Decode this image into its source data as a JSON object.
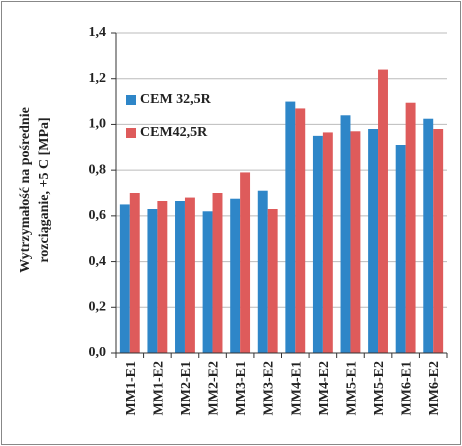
{
  "chart_data": {
    "type": "bar",
    "ylabel": [
      "Wytrzymałość na pośrednie",
      "rozciąganie, +5 C [MPa]"
    ],
    "categories": [
      "MM1-E1",
      "MM1-E2",
      "MM2-E1",
      "MM2-E2",
      "MM3-E1",
      "MM3-E2",
      "MM4-E1",
      "MM4-E2",
      "MM5-E1",
      "MM5-E2",
      "MM6-E1",
      "MM6-E2"
    ],
    "series": [
      {
        "name": "CEM 32,5R",
        "color": "#2e86c8",
        "values": [
          0.65,
          0.63,
          0.665,
          0.62,
          0.675,
          0.71,
          1.1,
          0.95,
          1.04,
          0.98,
          0.91,
          1.025
        ]
      },
      {
        "name": "CEM42,5R",
        "color": "#de5b5b",
        "values": [
          0.7,
          0.665,
          0.68,
          0.7,
          0.79,
          0.63,
          1.07,
          0.965,
          0.97,
          1.24,
          1.095,
          0.98
        ]
      }
    ],
    "ylim": [
      0,
      1.4
    ],
    "yticks": [
      {
        "value": 0,
        "label": "0,0"
      },
      {
        "value": 0.2,
        "label": "0,2"
      },
      {
        "value": 0.4,
        "label": "0,4"
      },
      {
        "value": 0.6,
        "label": "0,6"
      },
      {
        "value": 0.8,
        "label": "0,8"
      },
      {
        "value": 1.0,
        "label": "1,0"
      },
      {
        "value": 1.2,
        "label": "1,2"
      },
      {
        "value": 1.4,
        "label": "1,4"
      }
    ],
    "grid": true,
    "legend": "upper-left"
  }
}
